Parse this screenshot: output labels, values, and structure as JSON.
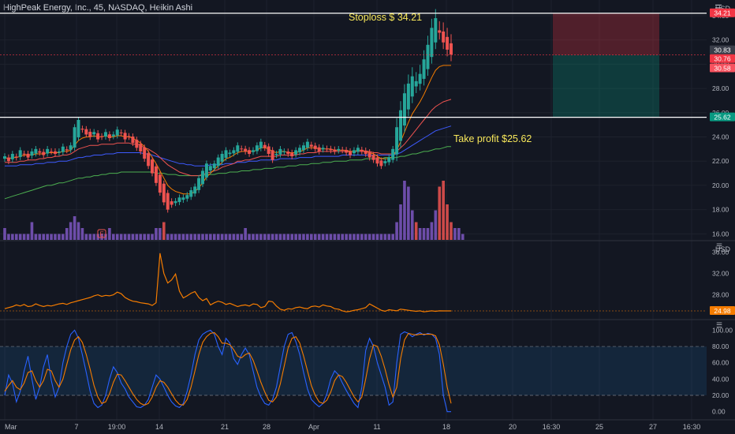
{
  "header": {
    "symbol_line": "HighPeak Energy, Inc., 45, NASDAQ, Heikin Ashi"
  },
  "price_unit": "USD",
  "atr_unit": "USD",
  "annotations": {
    "stoploss": "Stoploss $ 34.21",
    "take_profit": "Take profit $25.62"
  },
  "price_axis": {
    "ticks": [
      "34.00",
      "32.00",
      "30.00",
      "28.00",
      "26.00",
      "24.00",
      "22.00",
      "20.00",
      "18.00",
      "16.00"
    ],
    "tags": [
      {
        "label": "34.21",
        "color": "#f23645",
        "value": 34.21
      },
      {
        "label": "30.83",
        "color": "#3a3e4a",
        "value": 30.83
      },
      {
        "label": "30.76",
        "color": "#f23645",
        "value": 30.76
      },
      {
        "label": "30.58",
        "color": "#f7525f",
        "value": 30.58
      },
      {
        "label": "25.62",
        "color": "#089981",
        "value": 25.62
      }
    ]
  },
  "atr_axis": {
    "ticks": [
      "36.00",
      "32.00",
      "28.00",
      "24.98"
    ],
    "current": "24.98"
  },
  "stoch_axis": {
    "ticks": [
      "100.00",
      "80.00",
      "60.00",
      "40.00",
      "20.00",
      "0.00"
    ]
  },
  "time_axis": {
    "labels": [
      "Mar",
      "7",
      "19:00",
      "14",
      "21",
      "28",
      "Apr",
      "11",
      "18",
      "20",
      "16:30",
      "25",
      "27",
      "16:30"
    ]
  },
  "earnings_marker": "E",
  "colors": {
    "background": "#131722",
    "up": "#26a69a",
    "down": "#ef5350",
    "ema_fast": "#f57c00",
    "ema_mid": "#ef5350",
    "ema_slow": "#3d5afe",
    "ema_long": "#4caf50",
    "atr_line": "#f57c00",
    "stoch_k": "#2962ff",
    "stoch_d": "#f57c00",
    "annotation_text": "#f7e75a",
    "volume": "#7e57c2"
  },
  "chart_data": [
    {
      "type": "candlestick",
      "title": "HighPeak Energy, Inc., 45, NASDAQ, Heikin Ashi",
      "ylim": [
        15.5,
        35.3
      ],
      "levels": {
        "stoploss": 34.21,
        "take_profit": 25.62,
        "entry": 30.76
      },
      "position_zone": {
        "upper": 34.21,
        "entry": 30.76,
        "lower": 25.62
      },
      "close_series": [
        22.4,
        22.0,
        22.6,
        22.3,
        22.9,
        22.6,
        22.3,
        22.8,
        23.0,
        22.7,
        22.5,
        23.0,
        22.8,
        22.6,
        22.8,
        23.2,
        22.9,
        23.3,
        24.8,
        25.4,
        24.6,
        24.2,
        24.0,
        24.4,
        23.8,
        24.0,
        24.4,
        23.9,
        24.2,
        24.6,
        24.3,
        23.8,
        24.0,
        23.5,
        23.1,
        22.8,
        22.2,
        21.6,
        21.0,
        20.2,
        19.4,
        18.6,
        18.0,
        18.4,
        18.7,
        19.0,
        19.0,
        19.2,
        19.6,
        19.9,
        20.6,
        21.2,
        21.8,
        21.6,
        21.8,
        22.3,
        22.6,
        22.9,
        22.7,
        22.9,
        23.3,
        23.0,
        22.8,
        22.6,
        22.9,
        23.3,
        23.6,
        23.1,
        22.6,
        22.1,
        22.6,
        23.0,
        22.8,
        22.6,
        22.4,
        22.9,
        23.1,
        23.3,
        23.6,
        23.2,
        23.0,
        22.8,
        23.1,
        23.0,
        22.9,
        22.8,
        23.0,
        22.9,
        22.7,
        22.5,
        22.9,
        23.1,
        22.8,
        22.6,
        22.3,
        22.1,
        21.8,
        21.6,
        22.0,
        22.3,
        23.0,
        24.8,
        26.2,
        27.6,
        28.4,
        29.0,
        28.6,
        29.2,
        30.4,
        31.6,
        33.0,
        33.8,
        32.6,
        31.8,
        31.2,
        30.8
      ],
      "ema_fast": [
        22.3,
        22.2,
        22.3,
        22.3,
        22.4,
        22.5,
        22.5,
        22.5,
        22.6,
        22.6,
        22.6,
        22.7,
        22.7,
        22.7,
        22.7,
        22.8,
        22.8,
        22.9,
        23.3,
        23.7,
        23.9,
        24.0,
        24.0,
        24.1,
        24.0,
        24.0,
        24.1,
        24.0,
        24.0,
        24.1,
        24.1,
        24.0,
        24.0,
        23.9,
        23.7,
        23.5,
        23.2,
        22.8,
        22.3,
        21.8,
        21.2,
        20.6,
        20.0,
        19.7,
        19.5,
        19.4,
        19.3,
        19.3,
        19.3,
        19.5,
        19.8,
        20.2,
        20.7,
        21.0,
        21.3,
        21.6,
        21.9,
        22.2,
        22.3,
        22.5,
        22.7,
        22.8,
        22.8,
        22.8,
        22.8,
        22.9,
        23.1,
        23.1,
        23.0,
        22.8,
        22.7,
        22.8,
        22.8,
        22.7,
        22.7,
        22.7,
        22.8,
        22.9,
        23.1,
        23.1,
        23.1,
        23.0,
        23.0,
        23.0,
        23.0,
        22.9,
        22.9,
        22.9,
        22.9,
        22.8,
        22.8,
        22.9,
        22.9,
        22.8,
        22.7,
        22.6,
        22.4,
        22.2,
        22.2,
        22.2,
        22.4,
        22.9,
        23.6,
        24.4,
        25.2,
        25.9,
        26.4,
        26.9,
        27.5,
        28.2,
        28.9,
        29.5,
        29.8,
        29.9,
        29.9,
        29.9
      ],
      "ema_mid": [
        21.9,
        21.9,
        21.9,
        21.9,
        22.0,
        22.0,
        22.1,
        22.1,
        22.1,
        22.2,
        22.2,
        22.3,
        22.3,
        22.4,
        22.4,
        22.5,
        22.5,
        22.6,
        22.8,
        23.0,
        23.1,
        23.2,
        23.3,
        23.3,
        23.3,
        23.4,
        23.4,
        23.4,
        23.4,
        23.5,
        23.5,
        23.5,
        23.5,
        23.4,
        23.4,
        23.3,
        23.1,
        23.0,
        22.8,
        22.6,
        22.3,
        22.0,
        21.7,
        21.5,
        21.3,
        21.1,
        21.0,
        20.9,
        20.8,
        20.8,
        20.8,
        20.9,
        21.0,
        21.1,
        21.2,
        21.3,
        21.5,
        21.6,
        21.7,
        21.8,
        22.0,
        22.0,
        22.1,
        22.1,
        22.2,
        22.3,
        22.4,
        22.4,
        22.4,
        22.4,
        22.4,
        22.5,
        22.5,
        22.5,
        22.5,
        22.5,
        22.6,
        22.6,
        22.7,
        22.7,
        22.7,
        22.8,
        22.8,
        22.8,
        22.8,
        22.8,
        22.8,
        22.8,
        22.8,
        22.8,
        22.8,
        22.8,
        22.8,
        22.8,
        22.8,
        22.7,
        22.7,
        22.6,
        22.6,
        22.6,
        22.6,
        22.8,
        23.1,
        23.4,
        23.8,
        24.2,
        24.6,
        25.0,
        25.4,
        25.8,
        26.2,
        26.5,
        26.7,
        26.9,
        27.0,
        27.1
      ],
      "ema_slow": [
        21.6,
        21.6,
        21.6,
        21.6,
        21.7,
        21.7,
        21.7,
        21.7,
        21.8,
        21.8,
        21.8,
        21.9,
        21.9,
        21.9,
        22.0,
        22.0,
        22.0,
        22.1,
        22.2,
        22.3,
        22.3,
        22.4,
        22.4,
        22.5,
        22.5,
        22.5,
        22.6,
        22.6,
        22.6,
        22.7,
        22.7,
        22.7,
        22.7,
        22.7,
        22.7,
        22.7,
        22.6,
        22.6,
        22.5,
        22.4,
        22.3,
        22.2,
        22.1,
        22.0,
        21.9,
        21.8,
        21.8,
        21.7,
        21.7,
        21.6,
        21.6,
        21.6,
        21.6,
        21.7,
        21.7,
        21.7,
        21.7,
        21.8,
        21.8,
        21.8,
        21.9,
        21.9,
        21.9,
        22.0,
        22.0,
        22.0,
        22.1,
        22.1,
        22.1,
        22.1,
        22.1,
        22.2,
        22.2,
        22.2,
        22.2,
        22.2,
        22.3,
        22.3,
        22.3,
        22.3,
        22.4,
        22.4,
        22.4,
        22.4,
        22.4,
        22.4,
        22.4,
        22.5,
        22.5,
        22.5,
        22.5,
        22.5,
        22.5,
        22.5,
        22.5,
        22.5,
        22.5,
        22.5,
        22.5,
        22.5,
        22.5,
        22.6,
        22.7,
        22.9,
        23.1,
        23.3,
        23.5,
        23.7,
        23.9,
        24.1,
        24.3,
        24.5,
        24.6,
        24.7,
        24.8,
        24.9
      ],
      "ema_long": [
        18.9,
        19.0,
        19.1,
        19.2,
        19.3,
        19.4,
        19.5,
        19.6,
        19.7,
        19.8,
        19.9,
        20.0,
        20.0,
        20.1,
        20.2,
        20.2,
        20.3,
        20.4,
        20.5,
        20.6,
        20.6,
        20.7,
        20.7,
        20.8,
        20.8,
        20.9,
        20.9,
        21.0,
        21.0,
        21.0,
        21.1,
        21.1,
        21.1,
        21.1,
        21.1,
        21.1,
        21.1,
        21.1,
        21.1,
        21.0,
        21.0,
        21.0,
        20.9,
        20.9,
        20.9,
        20.8,
        20.8,
        20.8,
        20.8,
        20.8,
        20.8,
        20.8,
        20.9,
        20.9,
        20.9,
        21.0,
        21.0,
        21.0,
        21.1,
        21.1,
        21.1,
        21.2,
        21.2,
        21.2,
        21.3,
        21.3,
        21.3,
        21.4,
        21.4,
        21.4,
        21.5,
        21.5,
        21.5,
        21.6,
        21.6,
        21.6,
        21.7,
        21.7,
        21.7,
        21.8,
        21.8,
        21.8,
        21.9,
        21.9,
        21.9,
        22.0,
        22.0,
        22.0,
        22.0,
        22.1,
        22.1,
        22.1,
        22.1,
        22.2,
        22.2,
        22.2,
        22.2,
        22.2,
        22.3,
        22.3,
        22.3,
        22.3,
        22.4,
        22.4,
        22.5,
        22.6,
        22.6,
        22.7,
        22.8,
        22.8,
        22.9,
        23.0,
        23.0,
        23.1,
        23.2,
        23.2
      ],
      "volume": [
        0.2,
        0.1,
        0.1,
        0.1,
        0.1,
        0.1,
        0.1,
        0.3,
        0.1,
        0.1,
        0.1,
        0.1,
        0.1,
        0.1,
        0.1,
        0.1,
        0.2,
        0.3,
        0.4,
        0.3,
        0.2,
        0.1,
        0.1,
        0.1,
        0.1,
        0.1,
        0.1,
        0.2,
        0.1,
        0.1,
        0.1,
        0.1,
        0.1,
        0.1,
        0.1,
        0.1,
        0.1,
        0.1,
        0.1,
        0.2,
        0.2,
        0.3,
        0.1,
        0.1,
        0.1,
        0.1,
        0.1,
        0.1,
        0.1,
        0.1,
        0.1,
        0.1,
        0.1,
        0.1,
        0.1,
        0.1,
        0.1,
        0.1,
        0.1,
        0.1,
        0.1,
        0.1,
        0.2,
        0.1,
        0.1,
        0.1,
        0.1,
        0.1,
        0.1,
        0.1,
        0.1,
        0.1,
        0.1,
        0.1,
        0.1,
        0.1,
        0.1,
        0.1,
        0.1,
        0.1,
        0.1,
        0.1,
        0.1,
        0.1,
        0.1,
        0.1,
        0.1,
        0.1,
        0.1,
        0.1,
        0.1,
        0.1,
        0.1,
        0.1,
        0.1,
        0.1,
        0.1,
        0.1,
        0.1,
        0.1,
        0.1,
        0.3,
        0.6,
        1.0,
        0.9,
        0.5,
        0.3,
        0.2,
        0.2,
        0.2,
        0.3,
        0.5,
        0.9,
        1.0,
        0.6,
        0.3,
        0.2,
        0.2,
        0.1
      ]
    },
    {
      "type": "line",
      "title": "ATR",
      "ylim": [
        23.5,
        38.0
      ],
      "current": 24.98,
      "series": [
        {
          "values": [
            25.4,
            25.6,
            25.8,
            26.1,
            25.9,
            26.2,
            25.8,
            25.9,
            26.3,
            26.0,
            25.8,
            26.0,
            25.9,
            26.1,
            26.3,
            26.4,
            26.2,
            26.5,
            26.7,
            26.9,
            27.1,
            27.3,
            27.5,
            27.8,
            28.0,
            27.7,
            27.9,
            27.8,
            28.0,
            28.5,
            28.2,
            27.5,
            27.1,
            26.8,
            26.7,
            26.5,
            26.4,
            26.3,
            26.0,
            26.5,
            35.8,
            32.0,
            30.2,
            30.8,
            31.9,
            28.7,
            27.4,
            27.8,
            28.3,
            28.6,
            27.5,
            26.9,
            27.3,
            26.1,
            26.5,
            26.8,
            26.6,
            26.2,
            26.4,
            26.1,
            25.8,
            26.0,
            26.1,
            25.9,
            26.3,
            26.2,
            25.6,
            25.8,
            26.8,
            26.7,
            25.9,
            25.3,
            25.1,
            25.4,
            25.3,
            25.6,
            25.7,
            25.5,
            25.4,
            25.8,
            25.9,
            25.7,
            26.1,
            25.9,
            25.8,
            25.4,
            25.3,
            25.0,
            24.8,
            24.9,
            25.1,
            25.2,
            25.4,
            25.6,
            26.3,
            25.9,
            25.5,
            25.1,
            24.9,
            25.2,
            25.1,
            25.0,
            25.3,
            25.2,
            25.1,
            25.0,
            24.9,
            25.0,
            24.8,
            24.9,
            25.0,
            24.9,
            25.0,
            24.98,
            24.98,
            24.98
          ]
        }
      ]
    },
    {
      "type": "line",
      "title": "Stochastic",
      "ylim": [
        -10,
        112
      ],
      "series": [
        {
          "values": [
            20,
            45,
            35,
            12,
            25,
            50,
            68,
            40,
            15,
            30,
            55,
            70,
            38,
            18,
            30,
            60,
            80,
            95,
            100,
            90,
            70,
            48,
            25,
            10,
            5,
            8,
            20,
            40,
            55,
            48,
            35,
            28,
            18,
            12,
            6,
            5,
            8,
            15,
            30,
            45,
            40,
            30,
            20,
            12,
            7,
            5,
            10,
            25,
            45,
            70,
            88,
            95,
            98,
            100,
            95,
            80,
            70,
            90,
            84,
            65,
            58,
            70,
            78,
            70,
            50,
            30,
            18,
            10,
            8,
            15,
            30,
            55,
            80,
            95,
            97,
            86,
            70,
            48,
            28,
            15,
            10,
            6,
            10,
            22,
            40,
            50,
            45,
            35,
            26,
            18,
            10,
            5,
            30,
            75,
            90,
            80,
            60,
            45,
            30,
            8,
            12,
            60,
            95,
            98,
            96,
            92,
            95,
            97,
            94,
            96,
            95,
            90,
            70,
            20,
            0,
            0
          ]
        },
        {
          "values": [
            25,
            32,
            38,
            30,
            27,
            35,
            48,
            50,
            38,
            30,
            38,
            52,
            50,
            38,
            30,
            40,
            58,
            76,
            88,
            92,
            85,
            70,
            52,
            32,
            18,
            10,
            12,
            22,
            36,
            46,
            45,
            38,
            30,
            22,
            15,
            10,
            8,
            10,
            18,
            30,
            38,
            36,
            30,
            22,
            14,
            9,
            8,
            15,
            30,
            50,
            70,
            85,
            92,
            96,
            97,
            92,
            84,
            84,
            82,
            76,
            68,
            66,
            70,
            72,
            63,
            50,
            36,
            24,
            14,
            12,
            18,
            34,
            56,
            78,
            90,
            92,
            84,
            68,
            50,
            32,
            20,
            12,
            10,
            14,
            24,
            38,
            45,
            43,
            36,
            27,
            18,
            12,
            18,
            40,
            65,
            82,
            80,
            68,
            52,
            33,
            18,
            30,
            65,
            88,
            96,
            95,
            94,
            95,
            95,
            95,
            95,
            93,
            82,
            58,
            30,
            10
          ]
        }
      ]
    }
  ]
}
